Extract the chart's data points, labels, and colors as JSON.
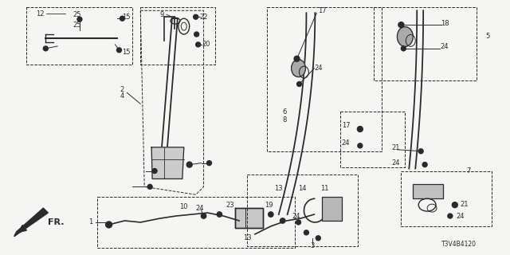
{
  "bg_color": "#f5f5f3",
  "line_color": "#2a2a2a",
  "diagram_id": "T3V4B4120",
  "fig_width": 6.4,
  "fig_height": 3.2,
  "dpi": 100,
  "label_fs": 6.0,
  "title_fs": 5.5
}
